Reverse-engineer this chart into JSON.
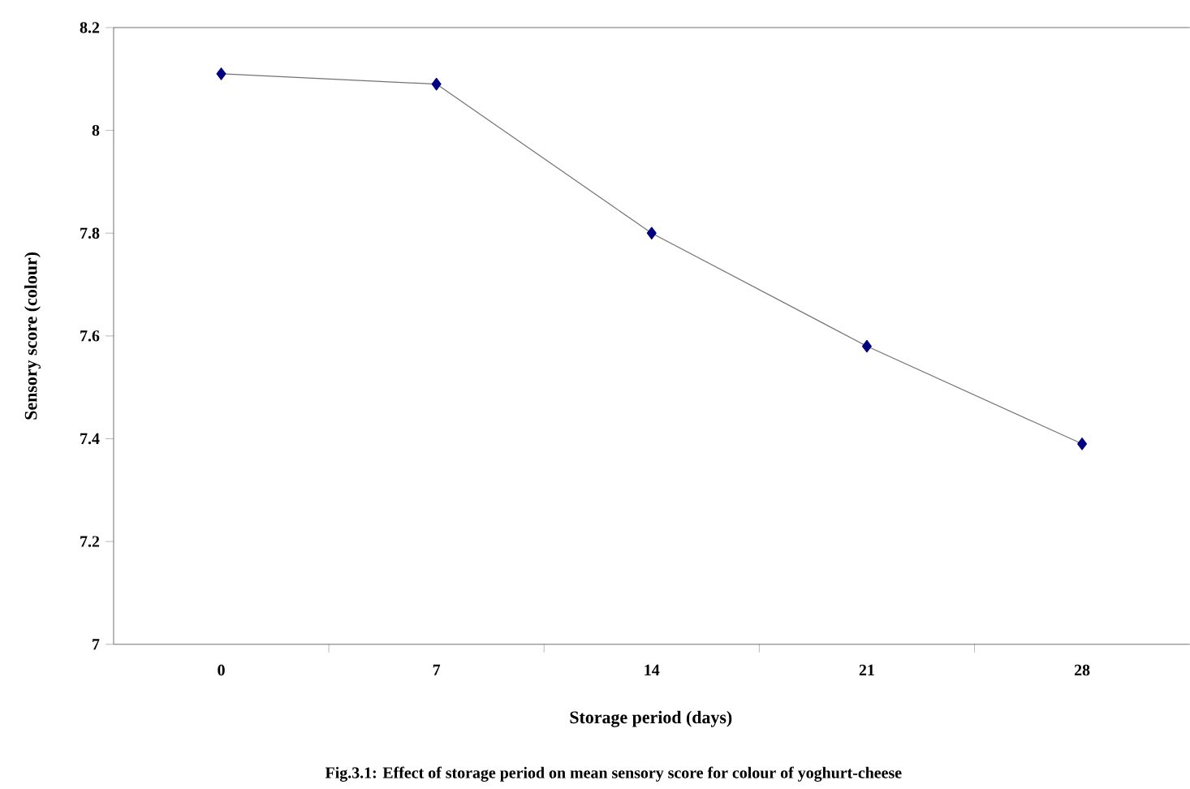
{
  "chart_data": {
    "type": "line",
    "xlabel": "Storage period (days)",
    "ylabel": "Sensory score (colour)",
    "categories": [
      "0",
      "7",
      "14",
      "21",
      "28"
    ],
    "series": [
      {
        "color": "#000080",
        "values": [
          8.11,
          8.09,
          7.8,
          7.58,
          7.39
        ]
      }
    ],
    "ylim": [
      7,
      8.2
    ],
    "yticks": [
      7,
      7.2,
      7.4,
      7.6,
      7.8,
      8,
      8.2
    ],
    "marker": "diamond",
    "line_style": "solid",
    "grid": false,
    "annotations": [
      "Fig.3.1: Effect of storage period on mean sensory score for colour of yoghurt-cheese"
    ]
  }
}
